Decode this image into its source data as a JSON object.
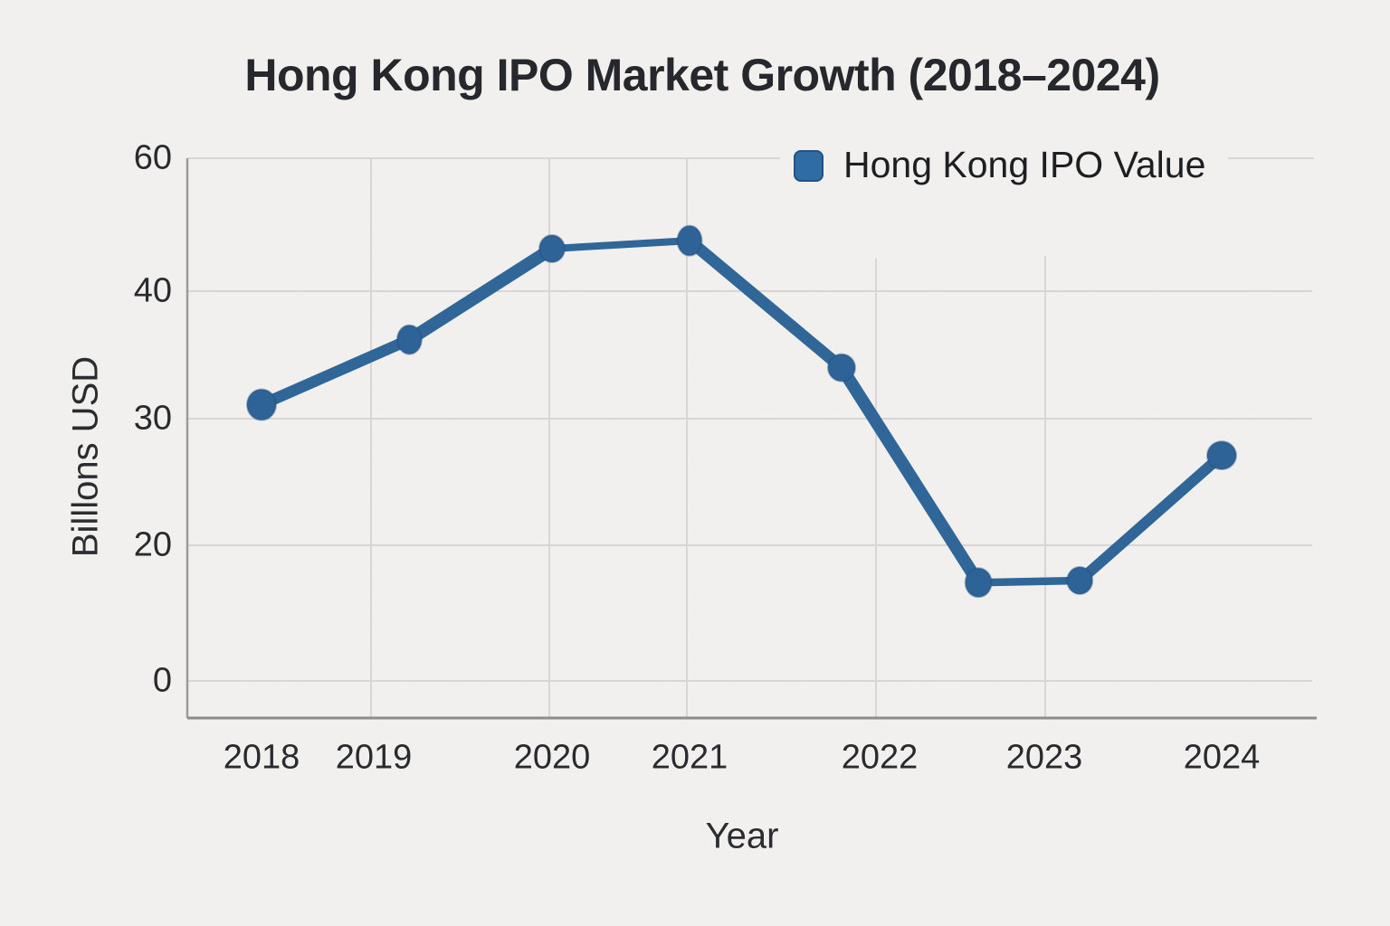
{
  "title": "Hong Kong IPO Market Growth (2018–2024)",
  "legend": {
    "label": "Hong Kong IPO Value"
  },
  "axes": {
    "x_title": "Year",
    "y_title": "Billlons USD",
    "x_tick_labels": [
      "2018",
      "2019",
      "2020",
      "2021",
      "2022",
      "2023",
      "2024"
    ],
    "y_tick_labels": [
      "60",
      "40",
      "30",
      "20",
      "0"
    ]
  },
  "colors": {
    "line": "#2e6598",
    "marker_fill": "#2d6297",
    "marker_edge": "#1f4e7e",
    "legend_swatch": "#2f6ba4",
    "gridline": "#d8d7d5",
    "axis_line": "#8d8c8a",
    "background": "#f2f1ef",
    "text": "#24262b"
  },
  "chart_data": {
    "type": "line",
    "title": "Hong Kong IPO Market Growth (2018–2024)",
    "xlabel": "Year",
    "ylabel": "Billlons USD",
    "grid": true,
    "legend_position": "top-right",
    "x_tick_labels": [
      "2018",
      "2019",
      "2020",
      "2021",
      "2022",
      "2023",
      "2024"
    ],
    "y_ticks": [
      0,
      20,
      30,
      40,
      60
    ],
    "ylim": [
      0,
      60
    ],
    "series": [
      {
        "name": "Hong Kong IPO Value",
        "color": "#2e6598",
        "marker": "circle",
        "points": [
          {
            "x": 2018.0,
            "y": 31.1
          },
          {
            "x": 2019.2,
            "y": 36.2
          },
          {
            "x": 2020.0,
            "y": 46.4
          },
          {
            "x": 2021.0,
            "y": 47.6
          },
          {
            "x": 2021.8,
            "y": 34.0
          },
          {
            "x": 2022.6,
            "y": 14.5
          },
          {
            "x": 2023.2,
            "y": 14.8
          },
          {
            "x": 2024.0,
            "y": 27.1
          }
        ]
      }
    ]
  }
}
